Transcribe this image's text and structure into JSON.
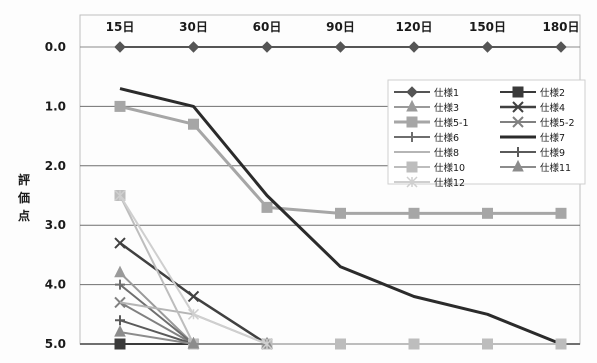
{
  "chart_data": {
    "type": "line",
    "title": "",
    "xlabel": "",
    "ylabel": "評価点",
    "x": [
      "15日",
      "30日",
      "60日",
      "90日",
      "120日",
      "150日",
      "180日"
    ],
    "ylim": [
      0.0,
      5.0
    ],
    "y_inverted": true,
    "y_ticks": [
      "0.0",
      "1.0",
      "2.0",
      "3.0",
      "4.0",
      "5.0"
    ],
    "grid": true,
    "legend_position": "top-right",
    "series": [
      {
        "name": "仕様1",
        "values": [
          0.0,
          0.0,
          0.0,
          0.0,
          0.0,
          0.0,
          0.0
        ],
        "color": "#555555",
        "marker": "diamond",
        "width": 2
      },
      {
        "name": "仕様2",
        "values": [
          5.0,
          5.0,
          5.0,
          5.0,
          5.0,
          5.0,
          null
        ],
        "color": "#3a3a3a",
        "marker": "square",
        "width": 2
      },
      {
        "name": "仕様3",
        "values": [
          3.8,
          5.0,
          5.0,
          null,
          null,
          null,
          null
        ],
        "color": "#9a9a9a",
        "marker": "triangle",
        "width": 2
      },
      {
        "name": "仕様4",
        "values": [
          3.3,
          4.2,
          5.0,
          null,
          null,
          null,
          null
        ],
        "color": "#404040",
        "marker": "x",
        "width": 2.5
      },
      {
        "name": "仕様5-1",
        "values": [
          1.0,
          1.3,
          2.7,
          2.8,
          2.8,
          2.8,
          2.8
        ],
        "color": "#a6a6a6",
        "marker": "square",
        "width": 3
      },
      {
        "name": "仕様5-2",
        "values": [
          4.3,
          5.0,
          5.0,
          null,
          null,
          null,
          null
        ],
        "color": "#808080",
        "marker": "x",
        "width": 2
      },
      {
        "name": "仕様6",
        "values": [
          4.0,
          5.0,
          5.0,
          null,
          null,
          null,
          null
        ],
        "color": "#6e6e6e",
        "marker": "plus",
        "width": 2
      },
      {
        "name": "仕様7",
        "values": [
          0.7,
          1.0,
          2.5,
          3.7,
          4.2,
          4.5,
          5.0
        ],
        "color": "#2b2b2b",
        "marker": "none",
        "width": 3
      },
      {
        "name": "仕様8",
        "values": [
          4.3,
          4.5,
          5.0,
          null,
          null,
          null,
          null
        ],
        "color": "#b5b5b5",
        "marker": "none",
        "width": 2
      },
      {
        "name": "仕様9",
        "values": [
          4.6,
          5.0,
          5.0,
          null,
          null,
          null,
          null
        ],
        "color": "#5a5a5a",
        "marker": "plus",
        "width": 2
      },
      {
        "name": "仕様10",
        "values": [
          2.5,
          5.0,
          5.0,
          5.0,
          5.0,
          5.0,
          5.0
        ],
        "color": "#bdbdbd",
        "marker": "square",
        "width": 2
      },
      {
        "name": "仕様11",
        "values": [
          4.8,
          5.0,
          5.0,
          null,
          null,
          null,
          null
        ],
        "color": "#8c8c8c",
        "marker": "triangle",
        "width": 2
      },
      {
        "name": "仕様12",
        "values": [
          2.5,
          4.5,
          5.0,
          null,
          null,
          null,
          null
        ],
        "color": "#cfcfcf",
        "marker": "star",
        "width": 2
      }
    ]
  }
}
